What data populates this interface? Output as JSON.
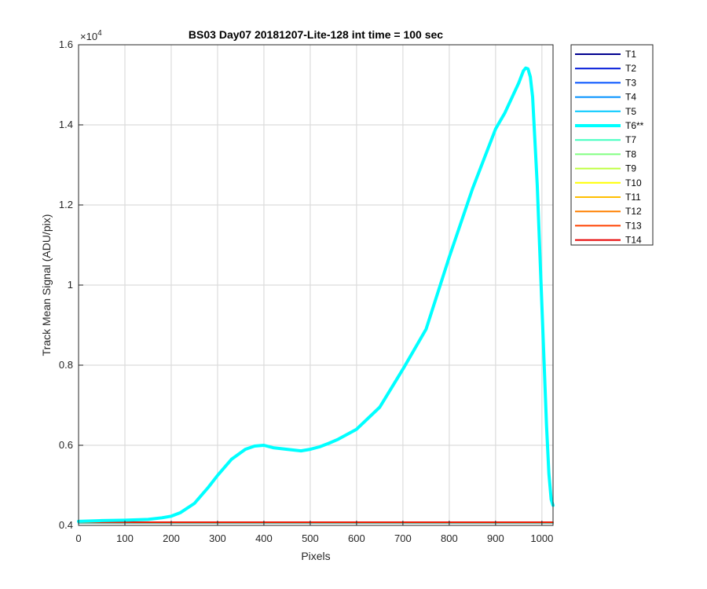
{
  "chart_data": {
    "type": "line",
    "title": "BS03 Day07 20181207-Lite-128 int time = 100 sec",
    "xlabel": "Pixels",
    "ylabel": "Track Mean Signal (ADU/pix)",
    "y_exponent_label": "×10",
    "y_exponent_power": "4",
    "xlim": [
      0,
      1024
    ],
    "ylim": [
      4000,
      16000
    ],
    "xticks": [
      0,
      100,
      200,
      300,
      400,
      500,
      600,
      700,
      800,
      900,
      1000
    ],
    "yticks": [
      4000,
      6000,
      8000,
      10000,
      12000,
      14000,
      16000
    ],
    "xtick_labels": [
      "0",
      "100",
      "200",
      "300",
      "400",
      "500",
      "600",
      "700",
      "800",
      "900",
      "1000"
    ],
    "ytick_labels": [
      "0.4",
      "0.6",
      "0.8",
      "1",
      "1.2",
      "1.4",
      "1.6"
    ],
    "grid": true,
    "legend_position": "outside-top-right",
    "series": [
      {
        "name": "T1",
        "color": "#00008f",
        "width": 1.5,
        "highlight": false,
        "x": [
          0,
          1024
        ],
        "y": [
          4060,
          4060
        ]
      },
      {
        "name": "T2",
        "color": "#0018d9",
        "width": 1.5,
        "highlight": false,
        "x": [
          0,
          1024
        ],
        "y": [
          4060,
          4060
        ]
      },
      {
        "name": "T3",
        "color": "#0050ff",
        "width": 1.5,
        "highlight": false,
        "x": [
          0,
          1024
        ],
        "y": [
          4060,
          4060
        ]
      },
      {
        "name": "T4",
        "color": "#0090ff",
        "width": 1.5,
        "highlight": false,
        "x": [
          0,
          1024
        ],
        "y": [
          4060,
          4060
        ]
      },
      {
        "name": "T5",
        "color": "#00c8ff",
        "width": 1.5,
        "highlight": false,
        "x": [
          0,
          1024
        ],
        "y": [
          4060,
          4060
        ]
      },
      {
        "name": "T6**",
        "color": "#00ffff",
        "width": 4,
        "highlight": true,
        "x": [
          0,
          50,
          100,
          150,
          180,
          200,
          220,
          250,
          280,
          300,
          330,
          360,
          380,
          400,
          420,
          450,
          480,
          500,
          520,
          540,
          560,
          600,
          650,
          700,
          720,
          750,
          800,
          850,
          870,
          900,
          920,
          940,
          950,
          960,
          965,
          970,
          975,
          980,
          990,
          1000,
          1010,
          1015,
          1020,
          1024
        ],
        "y": [
          4100,
          4120,
          4130,
          4150,
          4190,
          4230,
          4320,
          4550,
          4950,
          5250,
          5650,
          5900,
          5980,
          6000,
          5940,
          5900,
          5860,
          5900,
          5960,
          6050,
          6150,
          6400,
          6950,
          7900,
          8300,
          8900,
          10700,
          12400,
          13000,
          13900,
          14300,
          14800,
          15050,
          15350,
          15420,
          15400,
          15200,
          14700,
          12500,
          9500,
          6500,
          5300,
          4650,
          4500
        ]
      },
      {
        "name": "T7",
        "color": "#40ffbf",
        "width": 1.5,
        "highlight": false,
        "x": [
          0,
          1024
        ],
        "y": [
          4070,
          4070
        ]
      },
      {
        "name": "T8",
        "color": "#80ff80",
        "width": 1.5,
        "highlight": false,
        "x": [
          0,
          1024
        ],
        "y": [
          4070,
          4070
        ]
      },
      {
        "name": "T9",
        "color": "#bfff40",
        "width": 1.5,
        "highlight": false,
        "x": [
          0,
          1024
        ],
        "y": [
          4070,
          4070
        ]
      },
      {
        "name": "T10",
        "color": "#ffff00",
        "width": 1.5,
        "highlight": false,
        "x": [
          0,
          1024
        ],
        "y": [
          4070,
          4070
        ]
      },
      {
        "name": "T11",
        "color": "#ffbf00",
        "width": 1.5,
        "highlight": false,
        "x": [
          0,
          1024
        ],
        "y": [
          4070,
          4070
        ]
      },
      {
        "name": "T12",
        "color": "#ff8000",
        "width": 1.5,
        "highlight": false,
        "x": [
          0,
          1024
        ],
        "y": [
          4075,
          4075
        ]
      },
      {
        "name": "T13",
        "color": "#ff4000",
        "width": 1.5,
        "highlight": false,
        "x": [
          0,
          1024
        ],
        "y": [
          4080,
          4080
        ]
      },
      {
        "name": "T14",
        "color": "#e60000",
        "width": 1.5,
        "highlight": false,
        "x": [
          0,
          1024
        ],
        "y": [
          4080,
          4080
        ]
      }
    ]
  }
}
